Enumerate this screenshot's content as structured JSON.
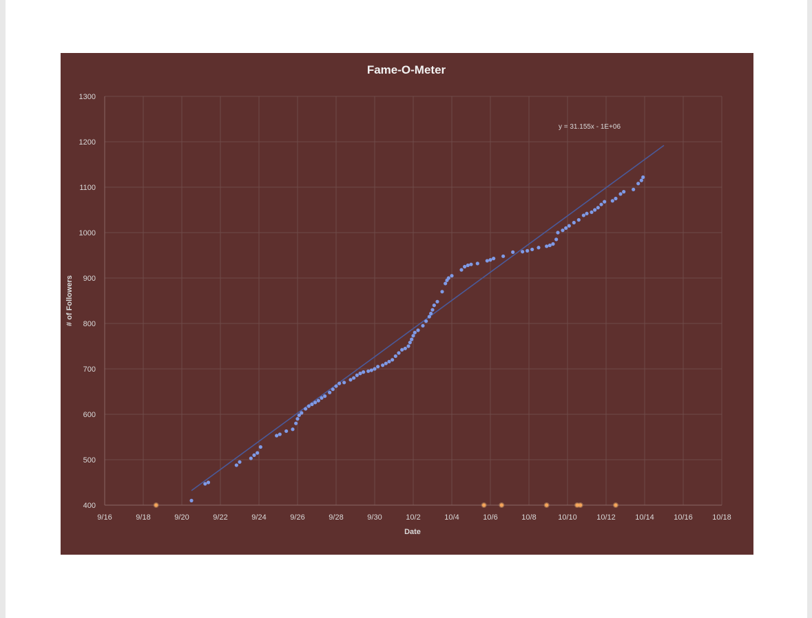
{
  "chart_data": {
    "type": "scatter",
    "title": "Fame-O-Meter",
    "xlabel": "Date",
    "ylabel": "# of Followers",
    "x_ticks": [
      "9/16",
      "9/18",
      "9/20",
      "9/22",
      "9/24",
      "9/26",
      "9/28",
      "9/30",
      "10/2",
      "10/4",
      "10/6",
      "10/8",
      "10/10",
      "10/12",
      "10/14",
      "10/16",
      "10/18"
    ],
    "y_ticks": [
      400,
      500,
      600,
      700,
      800,
      900,
      1000,
      1100,
      1200,
      1300
    ],
    "xlim": [
      "9/16",
      "10/18"
    ],
    "ylim": [
      400,
      1300
    ],
    "grid": true,
    "trendline": {
      "equation": "y = 31.155x - 1E+06",
      "start": {
        "x": "9/20 12:00",
        "y": 432
      },
      "end": {
        "x": "10/14 24:00",
        "y": 1192
      }
    },
    "series": [
      {
        "color": "#7f9ae6",
        "points": [
          [
            "9/20 12:00",
            410
          ],
          [
            "9/21 05:00",
            447
          ],
          [
            "9/21 09:00",
            450
          ],
          [
            "9/22 20:00",
            488
          ],
          [
            "9/23 00:00",
            495
          ],
          [
            "9/23 14:00",
            503
          ],
          [
            "9/23 18:00",
            510
          ],
          [
            "9/23 22:00",
            515
          ],
          [
            "9/24 02:00",
            528
          ],
          [
            "9/24 22:00",
            553
          ],
          [
            "9/25 02:00",
            556
          ],
          [
            "9/25 10:00",
            563
          ],
          [
            "9/25 18:00",
            567
          ],
          [
            "9/25 22:00",
            580
          ],
          [
            "9/26 00:00",
            590
          ],
          [
            "9/26 02:00",
            598
          ],
          [
            "9/26 05:00",
            603
          ],
          [
            "9/26 10:00",
            612
          ],
          [
            "9/26 14:00",
            618
          ],
          [
            "9/26 18:00",
            622
          ],
          [
            "9/26 22:00",
            626
          ],
          [
            "9/27 02:00",
            630
          ],
          [
            "9/27 06:00",
            636
          ],
          [
            "9/27 10:00",
            640
          ],
          [
            "9/27 16:00",
            648
          ],
          [
            "9/27 20:00",
            655
          ],
          [
            "9/28 00:00",
            662
          ],
          [
            "9/28 04:00",
            668
          ],
          [
            "9/28 10:00",
            670
          ],
          [
            "9/28 18:00",
            676
          ],
          [
            "9/28 22:00",
            680
          ],
          [
            "9/29 02:00",
            686
          ],
          [
            "9/29 06:00",
            690
          ],
          [
            "9/29 10:00",
            693
          ],
          [
            "9/29 16:00",
            695
          ],
          [
            "9/29 20:00",
            697
          ],
          [
            "9/30 00:00",
            700
          ],
          [
            "9/30 04:00",
            705
          ],
          [
            "9/30 10:00",
            708
          ],
          [
            "9/30 14:00",
            712
          ],
          [
            "9/30 18:00",
            716
          ],
          [
            "9/30 22:00",
            720
          ],
          [
            "10/1 02:00",
            728
          ],
          [
            "10/1 06:00",
            735
          ],
          [
            "10/1 10:00",
            742
          ],
          [
            "10/1 14:00",
            745
          ],
          [
            "10/1 18:00",
            750
          ],
          [
            "10/1 20:00",
            758
          ],
          [
            "10/1 22:00",
            765
          ],
          [
            "10/2 00:00",
            773
          ],
          [
            "10/2 02:00",
            780
          ],
          [
            "10/2 06:00",
            785
          ],
          [
            "10/2 12:00",
            795
          ],
          [
            "10/2 16:00",
            805
          ],
          [
            "10/2 20:00",
            815
          ],
          [
            "10/2 22:00",
            822
          ],
          [
            "10/3 00:00",
            830
          ],
          [
            "10/3 02:00",
            840
          ],
          [
            "10/3 06:00",
            848
          ],
          [
            "10/3 12:00",
            870
          ],
          [
            "10/3 16:00",
            888
          ],
          [
            "10/3 18:00",
            895
          ],
          [
            "10/3 20:00",
            900
          ],
          [
            "10/4 00:00",
            905
          ],
          [
            "10/4 12:00",
            918
          ],
          [
            "10/4 16:00",
            925
          ],
          [
            "10/4 20:00",
            928
          ],
          [
            "10/5 00:00",
            930
          ],
          [
            "10/5 08:00",
            932
          ],
          [
            "10/5 20:00",
            938
          ],
          [
            "10/6 00:00",
            940
          ],
          [
            "10/6 04:00",
            943
          ],
          [
            "10/6 16:00",
            948
          ],
          [
            "10/7 04:00",
            957
          ],
          [
            "10/7 16:00",
            958
          ],
          [
            "10/7 22:00",
            960
          ],
          [
            "10/8 04:00",
            963
          ],
          [
            "10/8 12:00",
            967
          ],
          [
            "10/8 22:00",
            970
          ],
          [
            "10/9 02:00",
            972
          ],
          [
            "10/9 06:00",
            975
          ],
          [
            "10/9 10:00",
            985
          ],
          [
            "10/9 12:00",
            1000
          ],
          [
            "10/9 18:00",
            1005
          ],
          [
            "10/9 22:00",
            1010
          ],
          [
            "10/10 02:00",
            1015
          ],
          [
            "10/10 08:00",
            1022
          ],
          [
            "10/10 14:00",
            1028
          ],
          [
            "10/10 20:00",
            1038
          ],
          [
            "10/11 00:00",
            1042
          ],
          [
            "10/11 06:00",
            1045
          ],
          [
            "10/11 10:00",
            1050
          ],
          [
            "10/11 14:00",
            1055
          ],
          [
            "10/11 18:00",
            1062
          ],
          [
            "10/11 22:00",
            1068
          ],
          [
            "10/12 08:00",
            1070
          ],
          [
            "10/12 12:00",
            1075
          ],
          [
            "10/12 18:00",
            1085
          ],
          [
            "10/12 22:00",
            1090
          ],
          [
            "10/13 10:00",
            1095
          ],
          [
            "10/13 16:00",
            1108
          ],
          [
            "10/13 20:00",
            1115
          ],
          [
            "10/13 22:00",
            1122
          ]
        ]
      },
      {
        "color": "#f5a45a",
        "points": [
          [
            "9/18 16:00",
            400
          ],
          [
            "10/5 16:00",
            400
          ],
          [
            "10/6 14:00",
            400
          ],
          [
            "10/8 22:00",
            400
          ],
          [
            "10/10 12:00",
            400
          ],
          [
            "10/10 16:00",
            400
          ],
          [
            "10/12 12:00",
            400
          ]
        ]
      }
    ]
  }
}
